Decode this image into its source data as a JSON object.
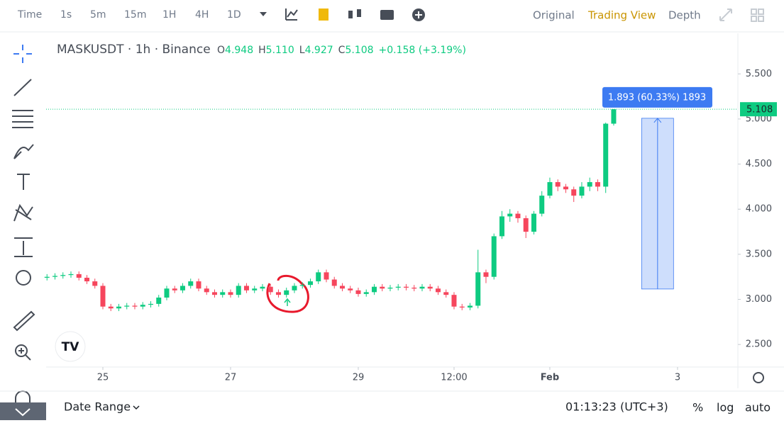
{
  "toolbar": {
    "intervals": [
      "Time",
      "1s",
      "5m",
      "15m",
      "1H",
      "4H",
      "1D"
    ],
    "views": [
      "Original",
      "Trading View",
      "Depth"
    ]
  },
  "footer": {
    "date_range": "Date Range",
    "clock": "01:13:23 (UTC+3)",
    "options": [
      "%",
      "log",
      "auto"
    ]
  },
  "chart_data": {
    "type": "candlestick",
    "title": "MASKUSDT · 1h · Binance",
    "ohlc_legend": [
      "O",
      "4.948",
      "H",
      "5.110",
      "L",
      "4.927",
      "C",
      "5.108",
      "+0.158 (+3.19%)"
    ],
    "up_color": "#0ecb81",
    "down_color": "#f6465d",
    "grid": false,
    "open": [
      3.24,
      3.25,
      3.26,
      3.27,
      3.28,
      3.24,
      3.2,
      3.15,
      2.92,
      2.9,
      2.92,
      2.93,
      2.92,
      2.94,
      2.95,
      3.02,
      3.12,
      3.1,
      3.15,
      3.2,
      3.12,
      3.08,
      3.05,
      3.08,
      3.05,
      3.15,
      3.1,
      3.12,
      3.14,
      3.08,
      3.05,
      3.1,
      3.15,
      3.16,
      3.2,
      3.3,
      3.22,
      3.15,
      3.12,
      3.1,
      3.06,
      3.08,
      3.14,
      3.12,
      3.13,
      3.14,
      3.13,
      3.12,
      3.14,
      3.12,
      3.08,
      3.05,
      2.92,
      2.91,
      2.93,
      3.3,
      3.25,
      3.7,
      3.92,
      3.95,
      3.9,
      3.75,
      3.95,
      4.15,
      4.3,
      4.25,
      4.22,
      4.15,
      4.25,
      4.3,
      4.25,
      4.948
    ],
    "high": [
      3.28,
      3.29,
      3.3,
      3.31,
      3.31,
      3.27,
      3.23,
      3.18,
      2.95,
      2.95,
      2.96,
      2.96,
      2.97,
      2.98,
      3.05,
      3.15,
      3.15,
      3.18,
      3.23,
      3.23,
      3.15,
      3.11,
      3.11,
      3.11,
      3.18,
      3.18,
      3.15,
      3.17,
      3.17,
      3.11,
      3.13,
      3.18,
      3.19,
      3.23,
      3.33,
      3.33,
      3.25,
      3.18,
      3.15,
      3.13,
      3.11,
      3.17,
      3.17,
      3.16,
      3.17,
      3.17,
      3.16,
      3.17,
      3.17,
      3.15,
      3.11,
      3.08,
      2.95,
      2.96,
      3.55,
      3.33,
      3.73,
      3.98,
      4.0,
      3.98,
      3.93,
      3.98,
      4.2,
      4.35,
      4.33,
      4.28,
      4.25,
      4.3,
      4.35,
      4.33,
      4.96,
      5.11
    ],
    "low": [
      3.21,
      3.22,
      3.23,
      3.24,
      3.21,
      3.17,
      3.12,
      2.89,
      2.87,
      2.87,
      2.89,
      2.89,
      2.89,
      2.91,
      2.92,
      2.99,
      3.07,
      3.07,
      3.12,
      3.09,
      3.05,
      3.02,
      3.02,
      3.02,
      3.02,
      3.07,
      3.07,
      3.09,
      3.05,
      3.02,
      3.02,
      3.07,
      3.12,
      3.13,
      3.17,
      3.19,
      3.12,
      3.09,
      3.07,
      3.03,
      3.03,
      3.05,
      3.09,
      3.09,
      3.1,
      3.1,
      3.09,
      3.09,
      3.09,
      3.05,
      3.02,
      2.89,
      2.88,
      2.88,
      2.9,
      3.18,
      3.22,
      3.67,
      3.86,
      3.85,
      3.68,
      3.72,
      3.92,
      4.12,
      4.2,
      4.18,
      4.08,
      4.12,
      4.2,
      4.2,
      4.18,
      4.927
    ],
    "close": [
      3.25,
      3.26,
      3.27,
      3.28,
      3.24,
      3.2,
      3.15,
      2.92,
      2.9,
      2.92,
      2.93,
      2.92,
      2.94,
      2.95,
      3.02,
      3.12,
      3.1,
      3.15,
      3.2,
      3.12,
      3.08,
      3.05,
      3.08,
      3.05,
      3.15,
      3.1,
      3.12,
      3.14,
      3.08,
      3.05,
      3.1,
      3.15,
      3.16,
      3.2,
      3.3,
      3.22,
      3.15,
      3.12,
      3.1,
      3.06,
      3.08,
      3.14,
      3.12,
      3.13,
      3.14,
      3.13,
      3.12,
      3.14,
      3.12,
      3.08,
      3.05,
      2.92,
      2.91,
      2.93,
      3.3,
      3.25,
      3.7,
      3.92,
      3.95,
      3.9,
      3.75,
      3.95,
      4.15,
      4.3,
      4.25,
      4.22,
      4.15,
      4.25,
      4.3,
      4.25,
      4.948,
      5.108
    ],
    "xlim": [
      -0.11,
      86.56
    ],
    "xticks": [
      {
        "value": 7,
        "label": "25"
      },
      {
        "value": 23,
        "label": "27"
      },
      {
        "value": 39,
        "label": "29"
      },
      {
        "value": 51,
        "label": "12:00"
      },
      {
        "value": 63,
        "label": "Feb"
      },
      {
        "value": 79,
        "label": "3"
      }
    ],
    "ylim": [
      2.25,
      5.95
    ],
    "yticks": [
      {
        "value": 2.5,
        "label": "2.500"
      },
      {
        "value": 3,
        "label": "3.000"
      },
      {
        "value": 3.5,
        "label": "3.500"
      },
      {
        "value": 4,
        "label": "4.000"
      },
      {
        "value": 4.5,
        "label": "4.500"
      },
      {
        "value": 5,
        "label": "5.000"
      },
      {
        "value": 5.5,
        "label": "5.500"
      }
    ],
    "price_line": {
      "value": 5.108,
      "label": "5.108",
      "color": "#0ecb81"
    },
    "measure": {
      "label": "1.893 (60.33%) 1893",
      "low": 3.115,
      "high": 5.008,
      "x": [
        74.5,
        78.5
      ],
      "color": "#3d7bf2"
    }
  }
}
